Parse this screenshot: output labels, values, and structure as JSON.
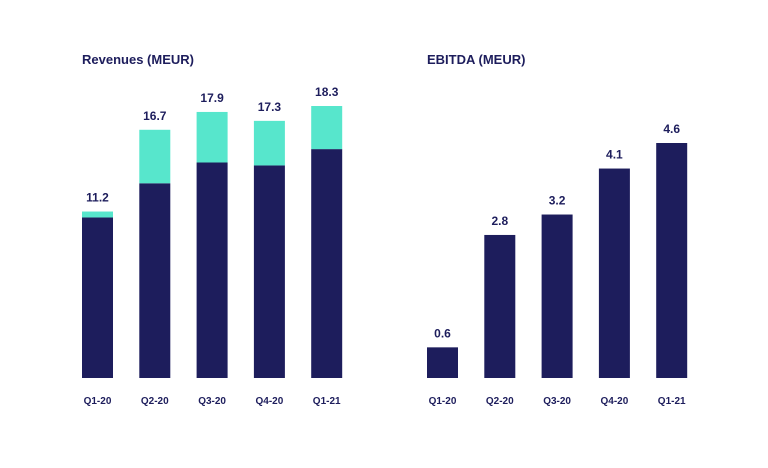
{
  "chart_data": [
    {
      "type": "bar",
      "stacked": true,
      "title": "Revenues (MEUR)",
      "categories": [
        "Q1-20",
        "Q2-20",
        "Q3-20",
        "Q4-20",
        "Q1-21"
      ],
      "totals": [
        "11.2",
        "16.7",
        "17.9",
        "17.3",
        "18.3"
      ],
      "series": [
        {
          "values": [
            10.8,
            13.1,
            14.5,
            14.3,
            15.4
          ],
          "color": "#1d1d5c"
        },
        {
          "values": [
            0.4,
            3.6,
            3.4,
            3.0,
            2.9
          ],
          "color": "#57e6cc"
        }
      ],
      "ylim": [
        0,
        18.3
      ],
      "grid": false,
      "legend": "none"
    },
    {
      "type": "bar",
      "title": "EBITDA (MEUR)",
      "categories": [
        "Q1-20",
        "Q2-20",
        "Q3-20",
        "Q4-20",
        "Q1-21"
      ],
      "values": [
        0.6,
        2.8,
        3.2,
        4.1,
        4.6
      ],
      "labels": [
        "0.6",
        "2.8",
        "3.2",
        "4.1",
        "4.6"
      ],
      "color": "#1d1d5c",
      "ylim": [
        0,
        4.6
      ],
      "grid": false,
      "legend": "none"
    }
  ]
}
